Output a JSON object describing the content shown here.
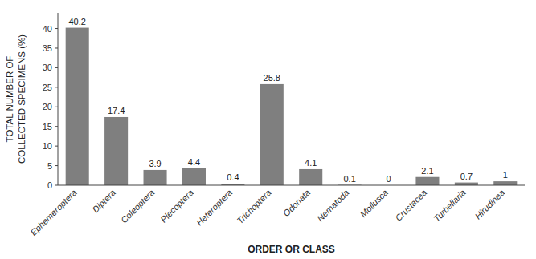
{
  "chart_data": {
    "type": "bar",
    "categories": [
      "Ephemeroptera",
      "Diptera",
      "Coleoptera",
      "Plecoptera",
      "Heteroptera",
      "Trichoptera",
      "Odonata",
      "Nematoda",
      "Mollusca",
      "Crustacea",
      "Turbellaria",
      "Hirudinea"
    ],
    "values": [
      40.2,
      17.4,
      3.9,
      4.4,
      0.4,
      25.8,
      4.1,
      0.1,
      0,
      2.1,
      0.7,
      1.0
    ],
    "color": "#7f7f7f",
    "ylabel": "TOTAL NUMBER OF\nCOLLECTED SPECIMENS (%)",
    "xlabel": "ORDER OR CLASS",
    "ylim": [
      0,
      44
    ],
    "yticks": [
      0,
      5,
      10,
      15,
      20,
      25,
      30,
      35,
      40
    ],
    "grid": false,
    "data_labels": true
  }
}
